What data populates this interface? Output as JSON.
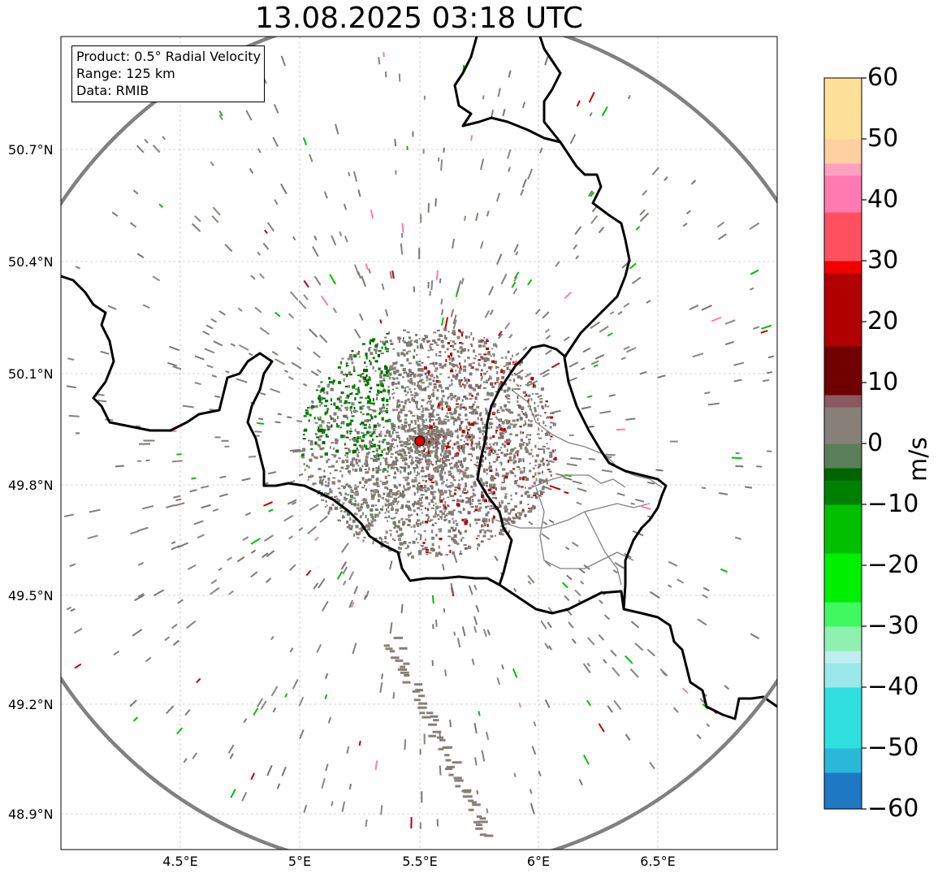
{
  "title": "13.08.2025 03:18 UTC",
  "info": {
    "product": "Product: 0.5° Radial Velocity",
    "range": "Range: 125 km",
    "data": "Data: RMIB"
  },
  "map": {
    "lon_range": [
      4.0,
      7.0
    ],
    "lat_range": [
      48.8,
      51.0
    ],
    "radar_site": {
      "lon": 5.5,
      "lat": 49.91
    },
    "range_km": 125,
    "grid": true,
    "lat_ticks": [
      "50.7°N",
      "50.4°N",
      "50.1°N",
      "49.8°N",
      "49.5°N",
      "49.2°N",
      "48.9°N"
    ],
    "lon_ticks": [
      "4.5°E",
      "5°E",
      "5.5°E",
      "6°E",
      "6.5°E"
    ],
    "colors": {
      "range_ring": "#808080",
      "borders": "#000000",
      "admin_borders": "#808080",
      "radar_marker": "#e00000"
    }
  },
  "colorbar": {
    "label": "m/s",
    "min": -60,
    "max": 60,
    "ticks": [
      "60",
      "50",
      "40",
      "30",
      "20",
      "10",
      "0",
      "−10",
      "−20",
      "−30",
      "−40",
      "−50",
      "−60"
    ],
    "stops": [
      {
        "v": -60,
        "c": "#1f78c4"
      },
      {
        "v": -54,
        "c": "#29b8d8"
      },
      {
        "v": -50,
        "c": "#30e0e0"
      },
      {
        "v": -40,
        "c": "#9ae8ea"
      },
      {
        "v": -36,
        "c": "#c0eef0"
      },
      {
        "v": -34,
        "c": "#90f0b0"
      },
      {
        "v": -30,
        "c": "#40f860"
      },
      {
        "v": -26,
        "c": "#00f000"
      },
      {
        "v": -18,
        "c": "#00c000"
      },
      {
        "v": -10,
        "c": "#008000"
      },
      {
        "v": -6,
        "c": "#006400"
      },
      {
        "v": -4,
        "c": "#5a7e5a"
      },
      {
        "v": 0,
        "c": "#868078"
      },
      {
        "v": 6,
        "c": "#8a5860"
      },
      {
        "v": 8,
        "c": "#700000"
      },
      {
        "v": 16,
        "c": "#b00000"
      },
      {
        "v": 28,
        "c": "#f00000"
      },
      {
        "v": 30,
        "c": "#ff5060"
      },
      {
        "v": 38,
        "c": "#ff7ab0"
      },
      {
        "v": 44,
        "c": "#ffa0c0"
      },
      {
        "v": 46,
        "c": "#ffd0a0"
      },
      {
        "v": 50,
        "c": "#ffe098"
      },
      {
        "v": 60,
        "c": "#ff9858"
      }
    ]
  }
}
